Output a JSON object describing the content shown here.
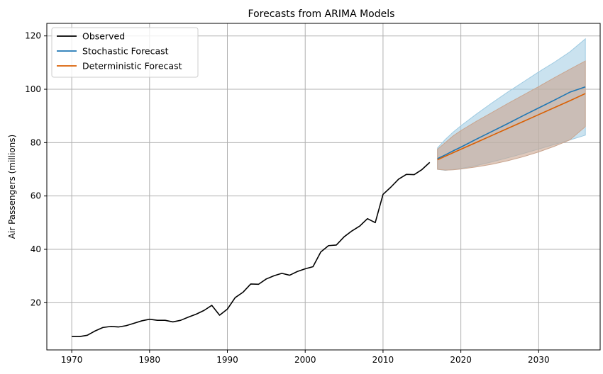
{
  "chart_data": {
    "type": "line",
    "title": "Forecasts from ARIMA Models",
    "xlabel": "",
    "ylabel": "Air Passengers (millions)",
    "xlim": [
      1966.8,
      2037.9
    ],
    "ylim": [
      2.3,
      124.7
    ],
    "xticks": [
      1970,
      1980,
      1990,
      2000,
      2010,
      2020,
      2030
    ],
    "yticks": [
      20,
      40,
      60,
      80,
      100,
      120
    ],
    "grid": true,
    "legend_position": "top-left",
    "colors": {
      "observed": "#000000",
      "stochastic": "#1f77b4",
      "deterministic": "#d95f02",
      "stochastic_band": "#9ecae1",
      "deterministic_band": "#c9a58f",
      "grid": "#b0b0b0"
    },
    "series": [
      {
        "name": "Observed",
        "x": [
          1970,
          1971,
          1972,
          1973,
          1974,
          1975,
          1976,
          1977,
          1978,
          1979,
          1980,
          1981,
          1982,
          1983,
          1984,
          1985,
          1986,
          1987,
          1988,
          1989,
          1990,
          1991,
          1992,
          1993,
          1994,
          1995,
          1996,
          1997,
          1998,
          1999,
          2000,
          2001,
          2002,
          2003,
          2004,
          2005,
          2006,
          2007,
          2008,
          2009,
          2010,
          2011,
          2012,
          2013,
          2014,
          2015,
          2016
        ],
        "y": [
          7.3,
          7.3,
          7.8,
          9.4,
          10.7,
          11.1,
          10.9,
          11.4,
          12.3,
          13.2,
          13.8,
          13.4,
          13.4,
          12.8,
          13.4,
          14.6,
          15.7,
          17.1,
          19.0,
          15.3,
          17.6,
          21.9,
          23.9,
          27.0,
          26.9,
          28.9,
          30.1,
          31.0,
          30.3,
          31.7,
          32.7,
          33.5,
          39.0,
          41.4,
          41.6,
          44.7,
          46.9,
          48.7,
          51.5,
          50.0,
          60.6,
          63.3,
          66.3,
          68.1,
          68.0,
          69.9,
          72.6
        ]
      },
      {
        "name": "Stochastic Forecast",
        "x": [
          2017,
          2018,
          2019,
          2020,
          2022,
          2024,
          2026,
          2028,
          2030,
          2032,
          2034,
          2036
        ],
        "y": [
          74.0,
          75.4,
          76.9,
          78.3,
          81.3,
          84.2,
          87.1,
          90.1,
          93.0,
          95.9,
          98.9,
          100.9
        ],
        "lower": [
          70.0,
          69.6,
          69.9,
          70.3,
          71.4,
          72.8,
          74.3,
          75.9,
          77.6,
          79.3,
          81.0,
          82.8
        ],
        "upper": [
          78.0,
          81.2,
          83.9,
          86.3,
          90.7,
          94.9,
          98.9,
          102.7,
          106.5,
          110.1,
          114.0,
          118.9
        ]
      },
      {
        "name": "Deterministic Forecast",
        "x": [
          2017,
          2018,
          2019,
          2020,
          2022,
          2024,
          2026,
          2028,
          2030,
          2032,
          2034,
          2036
        ],
        "y": [
          73.6,
          74.9,
          76.2,
          77.5,
          80.1,
          82.7,
          85.3,
          87.9,
          90.5,
          93.1,
          95.7,
          98.4
        ],
        "lower": [
          70.0,
          69.7,
          69.8,
          70.1,
          70.9,
          71.9,
          73.2,
          74.7,
          76.5,
          78.6,
          81.0,
          86.0
        ],
        "upper": [
          77.5,
          80.0,
          82.5,
          84.5,
          88.0,
          91.3,
          94.6,
          97.8,
          101.0,
          104.3,
          107.5,
          110.6
        ]
      }
    ]
  }
}
